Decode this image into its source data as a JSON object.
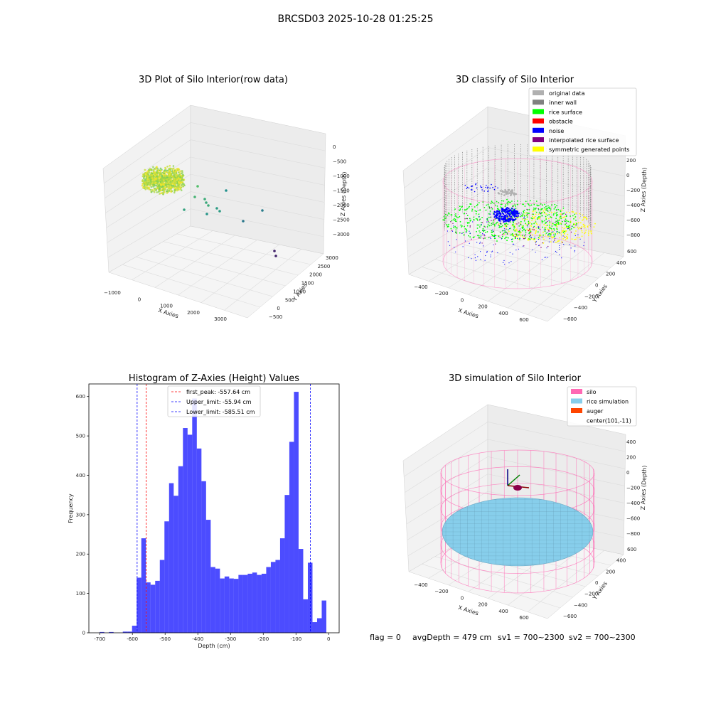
{
  "figure_title": "BRCSD03 2025-10-28 01:25:25",
  "footer": {
    "flag": "flag = 0",
    "avg": "avgDepth = 479 cm",
    "sv1": "sv1 = 700~2300",
    "sv2": "sv2 = 700~2300"
  },
  "colors": {
    "bar": "#0000ff",
    "first_peak": "#ff0000",
    "limit": "#0000ff",
    "silo": "#ff69b4",
    "rice_sim": "#87ceeb",
    "auger": "#ff4500",
    "original": "#b0b0b0",
    "inner_wall": "#808080",
    "rice_surface": "#00ff00",
    "obstacle": "#ff0000",
    "noise": "#0000ff",
    "interp": "#800080",
    "symmetric": "#ffff00"
  },
  "chart_data": [
    {
      "type": "scatter",
      "view": "3d",
      "title": "3D Plot of Silo Interior(row data)",
      "xlabel": "X Axies",
      "ylabel": "Y Axies",
      "zlabel": "Z Axies (Depth)",
      "x_ticks": [
        "−1000",
        "0",
        "1000",
        "2000",
        "3000"
      ],
      "y_ticks": [
        "−500",
        "0",
        "500",
        "1000",
        "1500",
        "2000",
        "2500",
        "3000"
      ],
      "z_ticks": [
        "0",
        "−500",
        "−1000",
        "−1500",
        "−2000",
        "−2500",
        "−3000"
      ],
      "grid": true,
      "colormap": "viridis"
    },
    {
      "type": "scatter",
      "view": "3d",
      "title": "3D classify of Silo Interior",
      "xlabel": "X Axies",
      "ylabel": "Y Axies",
      "zlabel": "Z Axies (Depth)",
      "x_ticks": [
        "−400",
        "−200",
        "0",
        "200",
        "400",
        "600"
      ],
      "y_ticks": [
        "−600",
        "−400",
        "−200",
        "0",
        "200",
        "400",
        "600"
      ],
      "z_ticks": [
        "200",
        "0",
        "−200",
        "−400",
        "−600",
        "−800"
      ],
      "grid": true,
      "legend_position": "top-right",
      "legend": [
        {
          "label": "original data",
          "color": "#b0b0b0"
        },
        {
          "label": "inner wall",
          "color": "#808080"
        },
        {
          "label": "rice surface",
          "color": "#00ff00"
        },
        {
          "label": "obstacle",
          "color": "#ff0000"
        },
        {
          "label": "noise",
          "color": "#0000ff"
        },
        {
          "label": "interpolated rice surface",
          "color": "#800080"
        },
        {
          "label": "symmetric generated points",
          "color": "#ffff00"
        }
      ]
    },
    {
      "type": "bar",
      "title": "Histogram of Z-Axies (Height) Values",
      "xlabel": "Depth (cm)",
      "ylabel": "Frequency",
      "xlim": [
        -733,
        32
      ],
      "ylim": [
        0,
        632
      ],
      "x_ticks": [
        -700,
        -600,
        -500,
        -400,
        -300,
        -200,
        -100,
        0
      ],
      "y_ticks": [
        0,
        100,
        200,
        300,
        400,
        500,
        600
      ],
      "bin_start": -700,
      "bin_width": 14.14,
      "values": [
        2,
        0,
        2,
        0,
        0,
        3,
        3,
        18,
        140,
        240,
        128,
        122,
        132,
        185,
        283,
        380,
        348,
        423,
        520,
        503,
        595,
        468,
        385,
        287,
        167,
        163,
        138,
        143,
        138,
        137,
        147,
        147,
        150,
        153,
        147,
        150,
        167,
        180,
        185,
        240,
        350,
        485,
        612,
        213,
        85,
        178,
        27,
        37,
        82
      ],
      "vlines": [
        {
          "name": "first_peak",
          "label": "first_peak: -557.64 cm",
          "x": -557.64,
          "color": "#ff0000"
        },
        {
          "name": "upper_limit",
          "label": "Upper_limit: -55.94 cm",
          "x": -55.94,
          "color": "#0000ff"
        },
        {
          "name": "lower_limit",
          "label": "Lower_limit: -585.51 cm",
          "x": -585.51,
          "color": "#0000ff"
        }
      ],
      "legend_position": "top-center",
      "grid": false
    },
    {
      "type": "scatter",
      "view": "3d",
      "title": "3D simulation of Silo Interior",
      "xlabel": "X Axies",
      "ylabel": "Y Axies",
      "zlabel": "Z Axies (Depth)",
      "x_ticks": [
        "−400",
        "−200",
        "0",
        "200",
        "400",
        "600"
      ],
      "y_ticks": [
        "−600",
        "−400",
        "−200",
        "0",
        "200",
        "400",
        "600"
      ],
      "z_ticks": [
        "400",
        "200",
        "0",
        "−200",
        "−400",
        "−600",
        "−800"
      ],
      "grid": true,
      "legend_position": "top-right",
      "legend": [
        {
          "label": "silo",
          "color": "#ff69b4"
        },
        {
          "label": "rice simulation",
          "color": "#87ceeb"
        },
        {
          "label": "auger",
          "color": "#ff4500"
        },
        {
          "label": "center(101,-11)",
          "color": ""
        }
      ]
    }
  ]
}
